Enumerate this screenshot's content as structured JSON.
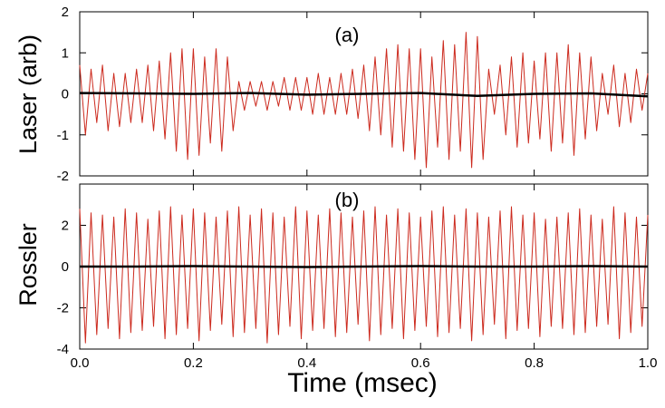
{
  "chart_data": [
    {
      "panel_label": "(a)",
      "type": "line",
      "ylabel": "Laser (arb)",
      "xlabel": "",
      "xlim": [
        0.0,
        1.0
      ],
      "ylim": [
        -2,
        2
      ],
      "yticks": [
        -2,
        -1,
        0,
        1,
        2
      ],
      "xticks": [
        0.0,
        0.2,
        0.4,
        0.6,
        0.8,
        1.0
      ],
      "show_x_tick_labels": false,
      "series": [
        {
          "color": "#cc2a1e",
          "style": "thin oscillating signal",
          "x": [
            0.0,
            0.01,
            0.02,
            0.03,
            0.04,
            0.05,
            0.06,
            0.07,
            0.08,
            0.09,
            0.1,
            0.11,
            0.12,
            0.13,
            0.14,
            0.15,
            0.16,
            0.17,
            0.18,
            0.19,
            0.2,
            0.21,
            0.22,
            0.23,
            0.24,
            0.25,
            0.26,
            0.27,
            0.28,
            0.29,
            0.3,
            0.31,
            0.32,
            0.33,
            0.34,
            0.35,
            0.36,
            0.37,
            0.38,
            0.39,
            0.4,
            0.41,
            0.42,
            0.43,
            0.44,
            0.45,
            0.46,
            0.47,
            0.48,
            0.49,
            0.5,
            0.51,
            0.52,
            0.53,
            0.54,
            0.55,
            0.56,
            0.57,
            0.58,
            0.59,
            0.6,
            0.61,
            0.62,
            0.63,
            0.64,
            0.65,
            0.66,
            0.67,
            0.68,
            0.69,
            0.7,
            0.71,
            0.72,
            0.73,
            0.74,
            0.75,
            0.76,
            0.77,
            0.78,
            0.79,
            0.8,
            0.81,
            0.82,
            0.83,
            0.84,
            0.85,
            0.86,
            0.87,
            0.88,
            0.89,
            0.9,
            0.91,
            0.92,
            0.93,
            0.94,
            0.95,
            0.96,
            0.97,
            0.98,
            0.99,
            1.0
          ],
          "y": [
            0.7,
            -1.0,
            0.6,
            -0.7,
            0.7,
            -0.9,
            0.5,
            -0.8,
            0.5,
            -0.7,
            0.6,
            -0.7,
            0.7,
            -0.9,
            0.8,
            -1.1,
            1.0,
            -1.4,
            1.1,
            -1.6,
            1.1,
            -1.5,
            0.9,
            -1.2,
            1.1,
            -1.4,
            0.9,
            -0.9,
            0.3,
            -0.4,
            0.3,
            -0.3,
            0.3,
            -0.4,
            0.3,
            -0.3,
            0.4,
            -0.4,
            0.4,
            -0.4,
            0.4,
            -0.5,
            0.5,
            -0.5,
            0.4,
            -0.5,
            0.5,
            -0.5,
            0.6,
            -0.6,
            0.7,
            -0.9,
            0.9,
            -1.0,
            1.1,
            -1.3,
            1.2,
            -1.4,
            1.1,
            -1.6,
            1.1,
            -1.8,
            0.9,
            -1.3,
            1.3,
            -1.6,
            1.2,
            -1.4,
            1.5,
            -1.8,
            1.4,
            -1.6,
            0.6,
            -0.5,
            0.7,
            -1.0,
            0.9,
            -1.3,
            1.0,
            -1.2,
            0.8,
            -1.1,
            1.0,
            -1.4,
            1.0,
            -1.2,
            1.2,
            -1.5,
            1.0,
            -1.1,
            0.9,
            -0.9,
            0.5,
            -0.5,
            0.7,
            -0.8,
            0.5,
            -0.7,
            0.6,
            -0.4,
            0.5
          ]
        },
        {
          "color": "#000000",
          "style": "thick nearly-flat signal",
          "x": [
            0.0,
            0.1,
            0.2,
            0.3,
            0.4,
            0.5,
            0.6,
            0.7,
            0.8,
            0.9,
            1.0
          ],
          "y": [
            0.02,
            0.01,
            0.0,
            0.02,
            -0.02,
            0.0,
            0.02,
            -0.05,
            0.0,
            0.01,
            -0.06
          ]
        }
      ]
    },
    {
      "panel_label": "(b)",
      "type": "line",
      "ylabel": "Rossler",
      "xlabel": "Time (msec)",
      "xlim": [
        0.0,
        1.0
      ],
      "ylim": [
        -4,
        4
      ],
      "yticks": [
        -4,
        -2,
        0,
        2
      ],
      "xticks": [
        0.0,
        0.2,
        0.4,
        0.6,
        0.8,
        1.0
      ],
      "xtick_labels": [
        "0.0",
        "0.2",
        "0.4",
        "0.6",
        "0.8",
        "1.0"
      ],
      "show_x_tick_labels": true,
      "series": [
        {
          "color": "#cc2a1e",
          "style": "thin oscillating signal",
          "x": [
            0.0,
            0.01,
            0.02,
            0.03,
            0.04,
            0.05,
            0.06,
            0.07,
            0.08,
            0.09,
            0.1,
            0.11,
            0.12,
            0.13,
            0.14,
            0.15,
            0.16,
            0.17,
            0.18,
            0.19,
            0.2,
            0.21,
            0.22,
            0.23,
            0.24,
            0.25,
            0.26,
            0.27,
            0.28,
            0.29,
            0.3,
            0.31,
            0.32,
            0.33,
            0.34,
            0.35,
            0.36,
            0.37,
            0.38,
            0.39,
            0.4,
            0.41,
            0.42,
            0.43,
            0.44,
            0.45,
            0.46,
            0.47,
            0.48,
            0.49,
            0.5,
            0.51,
            0.52,
            0.53,
            0.54,
            0.55,
            0.56,
            0.57,
            0.58,
            0.59,
            0.6,
            0.61,
            0.62,
            0.63,
            0.64,
            0.65,
            0.66,
            0.67,
            0.68,
            0.69,
            0.7,
            0.71,
            0.72,
            0.73,
            0.74,
            0.75,
            0.76,
            0.77,
            0.78,
            0.79,
            0.8,
            0.81,
            0.82,
            0.83,
            0.84,
            0.85,
            0.86,
            0.87,
            0.88,
            0.89,
            0.9,
            0.91,
            0.92,
            0.93,
            0.94,
            0.95,
            0.96,
            0.97,
            0.98,
            0.99,
            1.0
          ],
          "y": [
            2.8,
            -3.7,
            2.6,
            -3.3,
            2.5,
            -3.0,
            2.4,
            -3.5,
            2.8,
            -3.2,
            2.6,
            -3.1,
            2.3,
            -2.9,
            2.7,
            -3.5,
            2.9,
            -3.3,
            2.5,
            -3.0,
            2.8,
            -3.6,
            2.6,
            -3.1,
            2.4,
            -2.8,
            2.7,
            -3.4,
            2.9,
            -3.2,
            2.5,
            -3.0,
            2.8,
            -3.7,
            2.6,
            -3.3,
            2.4,
            -2.9,
            2.9,
            -3.5,
            2.7,
            -3.1,
            2.5,
            -3.0,
            2.8,
            -3.4,
            2.6,
            -3.2,
            2.4,
            -2.8,
            2.7,
            -3.6,
            2.9,
            -3.3,
            2.5,
            -3.0,
            2.8,
            -3.5,
            2.6,
            -3.1,
            2.4,
            -2.9,
            2.7,
            -3.4,
            2.9,
            -3.2,
            2.5,
            -3.0,
            2.8,
            -3.6,
            2.6,
            -3.3,
            2.4,
            -2.8,
            2.7,
            -3.5,
            2.9,
            -3.1,
            2.5,
            -3.0,
            2.6,
            -3.4,
            2.3,
            -2.9,
            2.4,
            -3.0,
            2.6,
            -3.3,
            2.8,
            -3.2,
            2.5,
            -2.9,
            2.3,
            -2.8,
            2.9,
            -3.5,
            2.6,
            -3.2,
            2.4,
            -2.9,
            2.5
          ]
        },
        {
          "color": "#000000",
          "style": "thick nearly-flat signal",
          "x": [
            0.0,
            0.1,
            0.2,
            0.3,
            0.4,
            0.5,
            0.6,
            0.7,
            0.8,
            0.9,
            1.0
          ],
          "y": [
            0.0,
            0.0,
            0.02,
            0.0,
            -0.02,
            0.0,
            0.02,
            0.0,
            0.0,
            0.02,
            0.0
          ]
        }
      ]
    }
  ]
}
